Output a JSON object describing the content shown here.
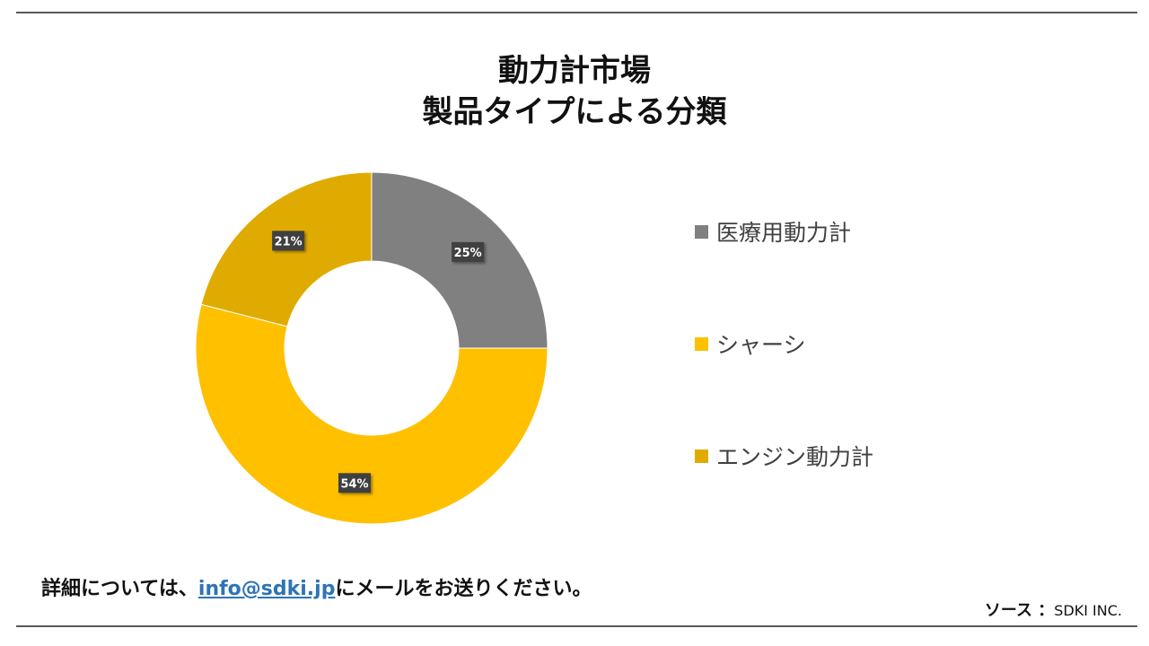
{
  "chart_data": {
    "type": "pie",
    "donut": true,
    "title": "動力計市場",
    "subtitle": "製品タイプによる分類",
    "legend_position": "right",
    "slices": [
      {
        "label": "医療用動力計",
        "value": 25,
        "display": "25%",
        "color": "#808080"
      },
      {
        "label": "シャーシ",
        "value": 54,
        "display": "54%",
        "color": "#ffc000"
      },
      {
        "label": "エンジン動力計",
        "value": 21,
        "display": "21%",
        "color": "#e0ab00"
      }
    ]
  },
  "footer": {
    "contact_prefix": "詳細については、",
    "contact_email": "info@sdki.jp",
    "contact_suffix": "にメールをお送りください。",
    "source_label": "ソース ：",
    "source_value": "SDKI INC."
  },
  "colors": {
    "rule": "#595959",
    "link": "#2e74b5",
    "label_box": "#404040"
  }
}
